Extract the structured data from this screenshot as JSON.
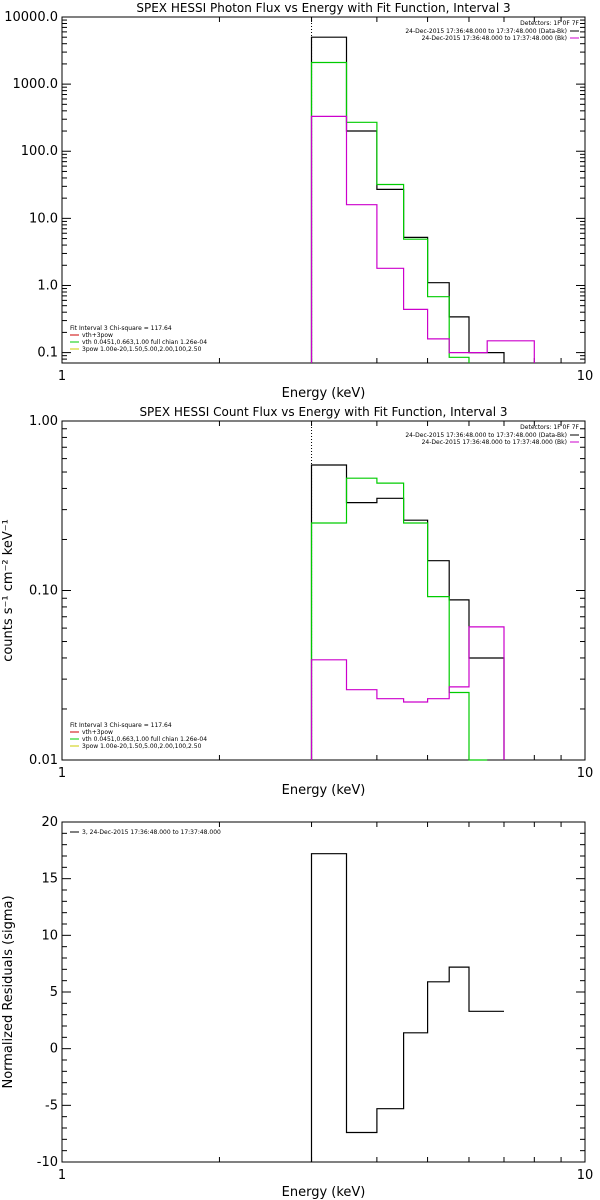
{
  "chart_data": [
    {
      "type": "line",
      "title": "SPEX HESSI Photon Flux vs Energy with Fit Function, Interval 3",
      "xlabel": "Energy (keV)",
      "ylabel": "",
      "xscale": "log",
      "yscale": "log",
      "xlim": [
        1,
        10
      ],
      "ylim": [
        0.07,
        10000
      ],
      "x_ticks": [
        {
          "value": 1,
          "label": "1"
        },
        {
          "value": 10,
          "label": "10"
        }
      ],
      "y_ticks": [
        {
          "value": 0.1,
          "label": "0.1"
        },
        {
          "value": 1,
          "label": "1.0"
        },
        {
          "value": 10,
          "label": "10.0"
        },
        {
          "value": 100,
          "label": "100.0"
        },
        {
          "value": 1000,
          "label": "1000.0"
        },
        {
          "value": 10000,
          "label": "10000.0"
        }
      ],
      "vline_x": 3.0,
      "legend_right": {
        "header": "Detectors: 1F 0F 7F",
        "entries": [
          {
            "label": "24-Dec-2015 17:36:48.000 to 17:37:48.000 (Data-Bk)",
            "color": "#000000"
          },
          {
            "label": "24-Dec-2015 17:36:48.000 to 17:37:48.000 (Bk)",
            "color": "#cc00cc"
          }
        ]
      },
      "legend_left": {
        "header": "Fit Interval 3   Chi-square = 117.64",
        "entries": [
          {
            "label": "vth+3pow",
            "color": "#cc0000"
          },
          {
            "label": "vth 0.0451,0.663,1.00  full chian 1.26e-04",
            "color": "#00cc00"
          },
          {
            "label": "3pow 1.00e-20,1.50,5.00,2.00,100,2.50",
            "color": "#cccc00"
          }
        ]
      },
      "series": [
        {
          "name": "Data-Bk",
          "color": "#000000",
          "edges": [
            3.0,
            3.5,
            4.0,
            4.5,
            5.0,
            5.5,
            6.0,
            6.5,
            7.0
          ],
          "values": [
            5000,
            200,
            27,
            5.2,
            1.1,
            0.34,
            0.1,
            0.1
          ]
        },
        {
          "name": "vth",
          "color": "#00cc00",
          "edges": [
            3.0,
            3.5,
            4.0,
            4.5,
            5.0,
            5.5,
            6.0
          ],
          "values": [
            2100,
            270,
            32,
            4.9,
            0.68,
            0.085
          ]
        },
        {
          "name": "Bk",
          "color": "#cc00cc",
          "edges": [
            3.0,
            3.5,
            4.0,
            4.5,
            5.0,
            5.5,
            6.0,
            6.5,
            7.0,
            8.0
          ],
          "values": [
            330,
            16,
            1.8,
            0.44,
            0.16,
            0.1,
            0.1,
            0.15,
            0.15
          ]
        }
      ]
    },
    {
      "type": "line",
      "title": "SPEX HESSI Count Flux vs Energy with Fit Function, Interval 3",
      "xlabel": "Energy (keV)",
      "ylabel": "counts s⁻¹ cm⁻² keV⁻¹",
      "xscale": "log",
      "yscale": "log",
      "xlim": [
        1,
        10
      ],
      "ylim": [
        0.01,
        1.0
      ],
      "x_ticks": [
        {
          "value": 1,
          "label": "1"
        },
        {
          "value": 10,
          "label": "10"
        }
      ],
      "y_ticks": [
        {
          "value": 0.01,
          "label": "0.01"
        },
        {
          "value": 0.1,
          "label": "0.10"
        },
        {
          "value": 1,
          "label": "1.00"
        }
      ],
      "vline_x": 3.0,
      "legend_right": {
        "header": "Detectors: 1F 0F 7F",
        "entries": [
          {
            "label": "24-Dec-2015 17:36:48.000 to 17:37:48.000 (Data-Bk)",
            "color": "#000000"
          },
          {
            "label": "24-Dec-2015 17:36:48.000 to 17:37:48.000 (Bk)",
            "color": "#cc00cc"
          }
        ]
      },
      "legend_left": {
        "header": "Fit Interval 3   Chi-square = 117.64",
        "entries": [
          {
            "label": "vth+3pow",
            "color": "#cc0000"
          },
          {
            "label": "vth 0.0451,0.663,1.00  full chian 1.26e-04",
            "color": "#00cc00"
          },
          {
            "label": "3pow 1.00e-20,1.50,5.00,2.00,100,2.50",
            "color": "#cccc00"
          }
        ]
      },
      "series": [
        {
          "name": "Data-Bk",
          "color": "#000000",
          "edges": [
            3.0,
            3.5,
            4.0,
            4.5,
            5.0,
            5.5,
            6.0,
            6.5,
            7.0
          ],
          "values": [
            0.55,
            0.33,
            0.35,
            0.26,
            0.15,
            0.088,
            0.04,
            0.04
          ]
        },
        {
          "name": "vth",
          "color": "#00cc00",
          "edges": [
            3.0,
            3.5,
            4.0,
            4.5,
            5.0,
            5.5,
            6.0,
            6.5
          ],
          "values": [
            0.25,
            0.46,
            0.43,
            0.25,
            0.092,
            0.025,
            0.005
          ]
        },
        {
          "name": "Bk",
          "color": "#cc00cc",
          "edges": [
            3.0,
            3.5,
            4.0,
            4.5,
            5.0,
            5.5,
            6.0,
            6.5,
            7.0
          ],
          "values": [
            0.039,
            0.026,
            0.023,
            0.022,
            0.023,
            0.027,
            0.061,
            0.061
          ]
        }
      ]
    },
    {
      "type": "line",
      "title": "",
      "xlabel": "Energy (keV)",
      "ylabel": "Normalized Residuals (sigma)",
      "xscale": "log",
      "yscale": "linear",
      "xlim": [
        1,
        10
      ],
      "ylim": [
        -10,
        20
      ],
      "x_ticks": [
        {
          "value": 1,
          "label": "1"
        },
        {
          "value": 10,
          "label": "10"
        }
      ],
      "y_ticks": [
        {
          "value": -10,
          "label": "-10"
        },
        {
          "value": -5,
          "label": "-5"
        },
        {
          "value": 0,
          "label": "0"
        },
        {
          "value": 5,
          "label": "5"
        },
        {
          "value": 10,
          "label": "10"
        },
        {
          "value": 15,
          "label": "15"
        },
        {
          "value": 20,
          "label": "20"
        }
      ],
      "legend_left": {
        "header": "",
        "entries": [
          {
            "label": "3, 24-Dec-2015 17:36:48.000 to 17:37:48.000",
            "color": "#000000"
          }
        ]
      },
      "series": [
        {
          "name": "3, 24-Dec-2015 17:36:48.000 to 17:37:48.000",
          "color": "#000000",
          "edges": [
            3.0,
            3.5,
            4.0,
            4.5,
            5.0,
            5.5,
            6.0,
            6.5,
            7.0
          ],
          "values": [
            17.2,
            -7.4,
            -5.3,
            1.4,
            5.9,
            7.2,
            3.3,
            3.3
          ]
        }
      ]
    }
  ]
}
